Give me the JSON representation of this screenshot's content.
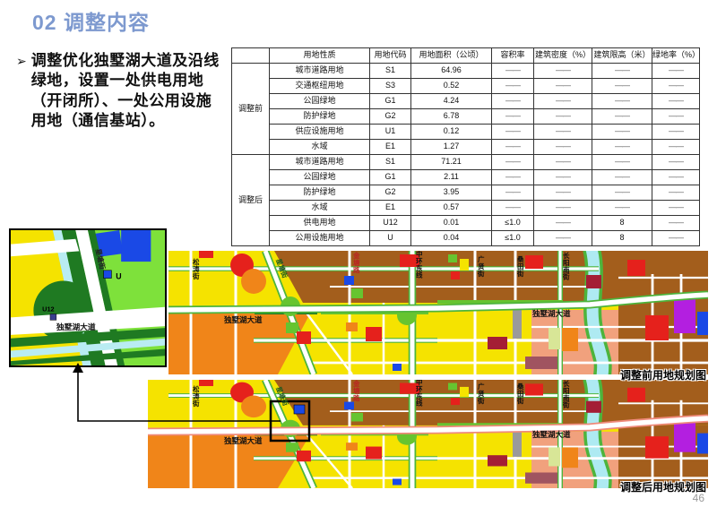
{
  "slide": {
    "title": "02 调整内容",
    "page_number": "46"
  },
  "bullet": {
    "marker": "➢",
    "text": "调整优化独墅湖大道及沿线绿地，设置一处供电用地（开闭所）、一处公用设施用地（通信基站）。"
  },
  "table": {
    "headers": {
      "nature": "用地性质",
      "code": "用地代码",
      "area": "用地面积（公顷）",
      "far": "容积率",
      "density": "建筑密度（%）",
      "height": "建筑限高（米）",
      "green": "绿地率（%）"
    },
    "groups": [
      {
        "label": "调整前",
        "rows": [
          {
            "nature": "城市道路用地",
            "code": "S1",
            "area": "64.96",
            "far": "——",
            "density": "——",
            "height": "——",
            "green": "——"
          },
          {
            "nature": "交通枢纽用地",
            "code": "S3",
            "area": "0.52",
            "far": "——",
            "density": "——",
            "height": "——",
            "green": "——"
          },
          {
            "nature": "公园绿地",
            "code": "G1",
            "area": "4.24",
            "far": "——",
            "density": "——",
            "height": "——",
            "green": "——"
          },
          {
            "nature": "防护绿地",
            "code": "G2",
            "area": "6.78",
            "far": "——",
            "density": "——",
            "height": "——",
            "green": "——"
          },
          {
            "nature": "供应设施用地",
            "code": "U1",
            "area": "0.12",
            "far": "——",
            "density": "——",
            "height": "——",
            "green": "——"
          },
          {
            "nature": "水域",
            "code": "E1",
            "area": "1.27",
            "far": "——",
            "density": "——",
            "height": "——",
            "green": "——"
          }
        ]
      },
      {
        "label": "调整后",
        "rows": [
          {
            "nature": "城市道路用地",
            "code": "S1",
            "area": "71.21",
            "far": "——",
            "density": "——",
            "height": "——",
            "green": "——"
          },
          {
            "nature": "公园绿地",
            "code": "G1",
            "area": "2.11",
            "far": "——",
            "density": "——",
            "height": "——",
            "green": "——"
          },
          {
            "nature": "防护绿地",
            "code": "G2",
            "area": "3.95",
            "far": "——",
            "density": "——",
            "height": "——",
            "green": "——"
          },
          {
            "nature": "水域",
            "code": "E1",
            "area": "0.57",
            "far": "——",
            "density": "——",
            "height": "——",
            "green": "——"
          },
          {
            "nature": "供电用地",
            "code": "U12",
            "area": "0.01",
            "far": "≤1.0",
            "density": "——",
            "height": "8",
            "green": "——"
          },
          {
            "nature": "公用设施用地",
            "code": "U",
            "area": "0.04",
            "far": "≤1.0",
            "density": "——",
            "height": "8",
            "green": "——"
          }
        ]
      }
    ]
  },
  "maps": {
    "inset": {
      "street_diag": "星塘街",
      "road_main": "独墅湖大道",
      "u_label": "U",
      "u12_label": "U12"
    },
    "map1": {
      "caption": "调整前用地规划图",
      "streets": {
        "songtao": "松涛街",
        "xingtang": "星塘街",
        "jintang": "金塘路",
        "zhonghuan": "中环东线",
        "guangxian": "广贤街",
        "sangtian": "桑田街",
        "changyang": "长阳南街",
        "dushu_left": "独墅湖大道",
        "dushu_right": "独墅湖大道"
      }
    },
    "map2": {
      "caption": "调整后用地规划图",
      "streets": {
        "songtao": "松涛街",
        "xingtang": "星塘街",
        "jintang": "金塘路",
        "zhonghuan": "中环东线",
        "guangxian": "广贤街",
        "sangtian": "桑田街",
        "changyang": "长阳南街",
        "dushu_left": "独墅湖大道",
        "dushu_right": "独墅湖大道"
      }
    }
  },
  "colors": {
    "title_accent": "#7d99cf",
    "residential_yellow": "#f5e300",
    "residential_pink": "#f1a17d",
    "commercial_brown": "#a35e1c",
    "orange": "#f08519",
    "red": "#e5211c",
    "crimson": "#a41e35",
    "park_green": "#66c430",
    "protect_green": "#1f7a22",
    "water_cyan": "#aeeaf2",
    "utility_blue": "#1a49e6",
    "purple": "#b31fe0",
    "gray": "#9a9a9a"
  }
}
